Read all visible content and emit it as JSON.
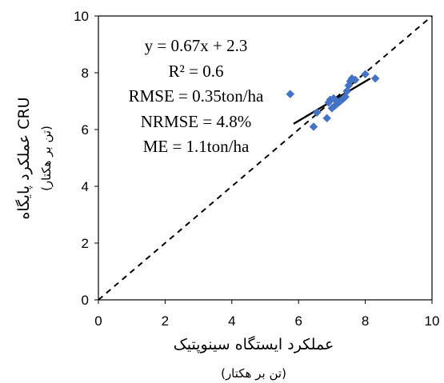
{
  "chart_data": {
    "type": "scatter",
    "title": "",
    "xlabel": "عملکرد ایستگاه سینوپتیک",
    "xlabel_unit": "(تن بر هکتار)",
    "ylabel": "عملکرد پایگاه CRU",
    "ylabel_unit": "(تن بر هکتار)",
    "xlim": [
      0,
      10
    ],
    "ylim": [
      0,
      10
    ],
    "xticks": [
      0,
      2,
      4,
      6,
      8,
      10
    ],
    "yticks": [
      0,
      2,
      4,
      6,
      8,
      10
    ],
    "grid": false,
    "legend": "none",
    "series": [
      {
        "marker": "diamond",
        "color": "#4472C4",
        "x": [
          5.75,
          6.45,
          6.55,
          6.85,
          6.9,
          6.95,
          7.0,
          7.05,
          7.1,
          7.15,
          7.2,
          7.25,
          7.3,
          7.35,
          7.4,
          7.45,
          7.5,
          7.55,
          7.6,
          7.7,
          8.0,
          8.3
        ],
        "y": [
          7.25,
          6.1,
          6.6,
          6.4,
          6.95,
          7.05,
          6.75,
          7.1,
          6.85,
          7.0,
          6.95,
          7.0,
          7.05,
          7.1,
          7.15,
          7.35,
          7.55,
          7.7,
          7.8,
          7.75,
          7.95,
          7.8
        ]
      }
    ],
    "lines": [
      {
        "name": "trendline",
        "style": "solid",
        "color": "#000000",
        "x": [
          5.85,
          8.15
        ],
        "y": [
          6.2,
          7.8
        ]
      },
      {
        "name": "1:1 line",
        "style": "dashed",
        "color": "#000000",
        "x": [
          0,
          10
        ],
        "y": [
          0,
          10
        ]
      }
    ],
    "annotations": [
      "y = 0.67x + 2.3",
      "R² = 0.6",
      "RMSE = 0.35ton/ha",
      "NRMSE = 4.8%",
      "ME = 1.1ton/ha"
    ]
  }
}
